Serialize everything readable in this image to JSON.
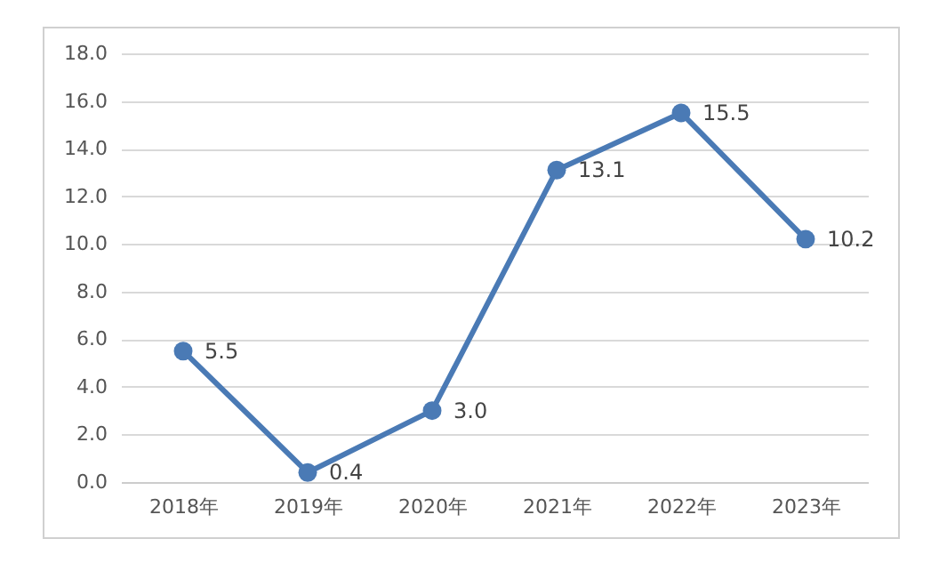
{
  "chart_data": {
    "type": "line",
    "categories": [
      "2018年",
      "2019年",
      "2020年",
      "2021年",
      "2022年",
      "2023年"
    ],
    "series": [
      {
        "color": "#4a7ab5",
        "values": [
          5.5,
          0.4,
          3.0,
          13.1,
          15.5,
          10.2
        ],
        "value_labels": [
          "5.5",
          "0.4",
          "3.0",
          "13.1",
          "15.5",
          "10.2"
        ]
      }
    ],
    "ylim": [
      0,
      18
    ],
    "yticks": [
      {
        "value": 0,
        "label": "0.0"
      },
      {
        "value": 2,
        "label": "2.0"
      },
      {
        "value": 4,
        "label": "4.0"
      },
      {
        "value": 6,
        "label": "6.0"
      },
      {
        "value": 8,
        "label": "8.0"
      },
      {
        "value": 10,
        "label": "10.0"
      },
      {
        "value": 12,
        "label": "12.0"
      },
      {
        "value": 14,
        "label": "14.0"
      },
      {
        "value": 16,
        "label": "16.0"
      },
      {
        "value": 18,
        "label": "18.0"
      }
    ],
    "grid": "y",
    "marker": "circle",
    "line_style": "solid",
    "data_labels": true
  }
}
